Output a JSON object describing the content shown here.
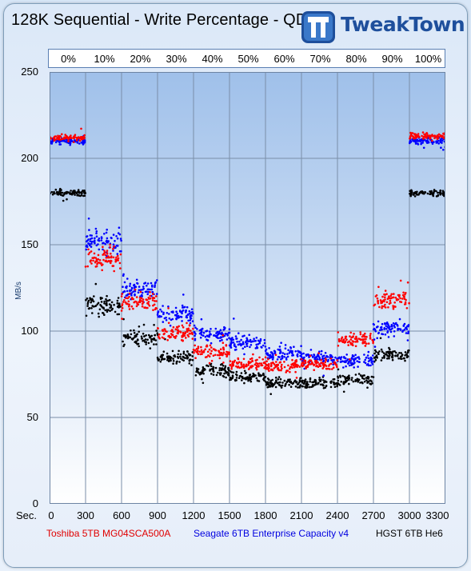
{
  "chart_data": {
    "type": "scatter",
    "title": "128K Sequential - Write Percentage - QD256",
    "ylabel": "MB/s",
    "xlabel": "Sec.",
    "xlim": [
      0,
      3300
    ],
    "ylim": [
      0,
      250
    ],
    "x_ticks": [
      0,
      300,
      600,
      900,
      1200,
      1500,
      1800,
      2100,
      2400,
      2700,
      3000,
      3300
    ],
    "y_ticks": [
      0,
      50,
      100,
      150,
      200,
      250
    ],
    "grid": true,
    "segment_labels": [
      "0%",
      "10%",
      "20%",
      "30%",
      "40%",
      "50%",
      "60%",
      "70%",
      "80%",
      "90%",
      "100%"
    ],
    "legend_position": "bottom",
    "series": [
      {
        "name": "Toshiba 5TB MG04SCA500A",
        "color": "#ff0000",
        "segments": [
          {
            "x": [
              0,
              300
            ],
            "y": 212
          },
          {
            "x": [
              300,
              600
            ],
            "y": 142
          },
          {
            "x": [
              600,
              900
            ],
            "y": 117
          },
          {
            "x": [
              900,
              1200
            ],
            "y": 99
          },
          {
            "x": [
              1200,
              1500
            ],
            "y": 88
          },
          {
            "x": [
              1500,
              1800
            ],
            "y": 81
          },
          {
            "x": [
              1800,
              2100
            ],
            "y": 80
          },
          {
            "x": [
              2100,
              2400
            ],
            "y": 81
          },
          {
            "x": [
              2400,
              2700
            ],
            "y": 95
          },
          {
            "x": [
              2700,
              3000
            ],
            "y": 118
          },
          {
            "x": [
              3000,
              3300
            ],
            "y": 213
          }
        ]
      },
      {
        "name": "Seagate 6TB Enterprise Capacity v4",
        "color": "#0000ff",
        "segments": [
          {
            "x": [
              0,
              300
            ],
            "y": 210
          },
          {
            "x": [
              300,
              600
            ],
            "y": 152
          },
          {
            "x": [
              600,
              900
            ],
            "y": 125
          },
          {
            "x": [
              900,
              1200
            ],
            "y": 110
          },
          {
            "x": [
              1200,
              1500
            ],
            "y": 98
          },
          {
            "x": [
              1500,
              1800
            ],
            "y": 93
          },
          {
            "x": [
              1800,
              2100
            ],
            "y": 87
          },
          {
            "x": [
              2100,
              2400
            ],
            "y": 84
          },
          {
            "x": [
              2400,
              2700
            ],
            "y": 83
          },
          {
            "x": [
              2700,
              3000
            ],
            "y": 102
          },
          {
            "x": [
              3000,
              3300
            ],
            "y": 210
          }
        ]
      },
      {
        "name": "HGST 6TB He6",
        "color": "#000000",
        "segments": [
          {
            "x": [
              0,
              300
            ],
            "y": 180
          },
          {
            "x": [
              300,
              600
            ],
            "y": 115
          },
          {
            "x": [
              600,
              900
            ],
            "y": 96
          },
          {
            "x": [
              900,
              1200
            ],
            "y": 85
          },
          {
            "x": [
              1200,
              1500
            ],
            "y": 77
          },
          {
            "x": [
              1500,
              1800
            ],
            "y": 73
          },
          {
            "x": [
              1800,
              2100
            ],
            "y": 70
          },
          {
            "x": [
              2100,
              2400
            ],
            "y": 70
          },
          {
            "x": [
              2400,
              2700
            ],
            "y": 72
          },
          {
            "x": [
              2700,
              3000
            ],
            "y": 86
          },
          {
            "x": [
              3000,
              3300
            ],
            "y": 180
          }
        ]
      }
    ]
  },
  "logo": {
    "text": "TweakTown",
    "color": "#1e4f9c"
  },
  "colors": {
    "plot_top": "#9fc0ea",
    "plot_bottom": "#ffffff",
    "grid": "#7a8ea8"
  }
}
